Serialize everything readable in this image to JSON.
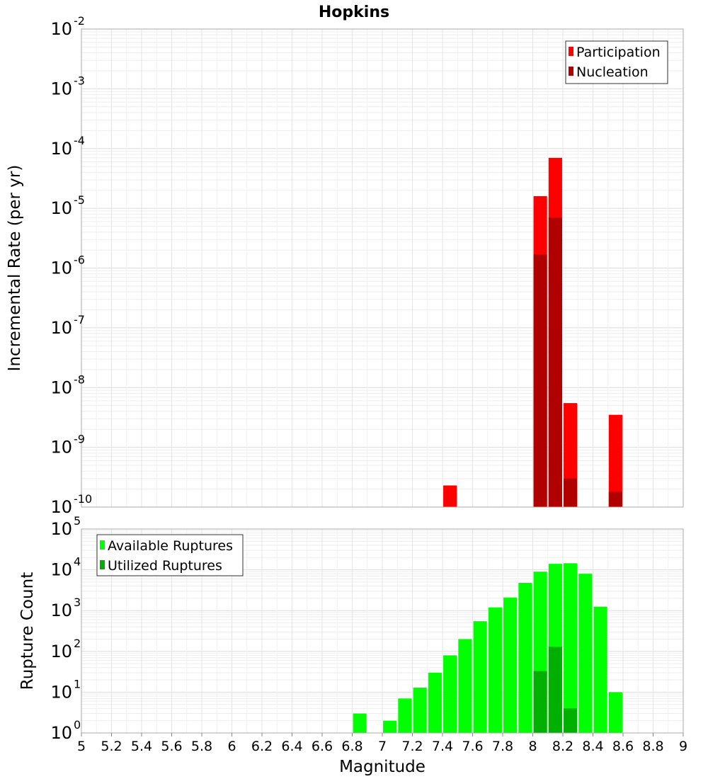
{
  "title": "Hopkins",
  "xlabel": "Magnitude",
  "x_ticks": [
    "5",
    "5.2",
    "5.4",
    "5.6",
    "5.8",
    "6",
    "6.2",
    "6.4",
    "6.6",
    "6.8",
    "7",
    "7.2",
    "7.4",
    "7.6",
    "7.8",
    "8",
    "8.2",
    "8.4",
    "8.6",
    "8.8",
    "9"
  ],
  "chart_data": [
    {
      "type": "bar",
      "title": "Hopkins",
      "xlabel": "Magnitude",
      "ylabel": "Incremental Rate (per yr)",
      "yscale": "log",
      "xlim": [
        5,
        9
      ],
      "ylim": [
        1e-10,
        0.01
      ],
      "y_tick_exponents": [
        "-10",
        "-9",
        "-8",
        "-7",
        "-6",
        "-5",
        "-4",
        "-3",
        "-2"
      ],
      "grid": true,
      "legend_position": "top-right",
      "series": [
        {
          "name": "Participation",
          "color": "#ff0000",
          "points": [
            {
              "x": 7.45,
              "y": 2.3e-10
            },
            {
              "x": 8.05,
              "y": 1.6e-05
            },
            {
              "x": 8.15,
              "y": 7e-05
            },
            {
              "x": 8.25,
              "y": 5.5e-09
            },
            {
              "x": 8.55,
              "y": 3.5e-09
            }
          ]
        },
        {
          "name": "Nucleation",
          "color": "#b00000",
          "points": [
            {
              "x": 8.05,
              "y": 1.7e-06
            },
            {
              "x": 8.15,
              "y": 7e-06
            },
            {
              "x": 8.25,
              "y": 3e-10
            },
            {
              "x": 8.55,
              "y": 1.8e-10
            }
          ]
        }
      ]
    },
    {
      "type": "bar",
      "title": "",
      "xlabel": "Magnitude",
      "ylabel": "Rupture Count",
      "yscale": "log",
      "xlim": [
        5,
        9
      ],
      "ylim": [
        1,
        100000.0
      ],
      "y_tick_exponents": [
        "0",
        "1",
        "2",
        "3",
        "4",
        "5"
      ],
      "grid": true,
      "legend_position": "top-left",
      "series": [
        {
          "name": "Available Ruptures",
          "color": "#00ff00",
          "points": [
            {
              "x": 6.85,
              "y": 3
            },
            {
              "x": 7.05,
              "y": 2
            },
            {
              "x": 7.15,
              "y": 7
            },
            {
              "x": 7.25,
              "y": 13
            },
            {
              "x": 7.35,
              "y": 30
            },
            {
              "x": 7.45,
              "y": 80
            },
            {
              "x": 7.55,
              "y": 200
            },
            {
              "x": 7.65,
              "y": 550
            },
            {
              "x": 7.75,
              "y": 1200
            },
            {
              "x": 7.85,
              "y": 2100
            },
            {
              "x": 7.95,
              "y": 4800
            },
            {
              "x": 8.05,
              "y": 9000
            },
            {
              "x": 8.15,
              "y": 14000
            },
            {
              "x": 8.25,
              "y": 14500
            },
            {
              "x": 8.35,
              "y": 8000
            },
            {
              "x": 8.45,
              "y": 1250
            },
            {
              "x": 8.55,
              "y": 10
            }
          ]
        },
        {
          "name": "Utilized Ruptures",
          "color": "#00b000",
          "points": [
            {
              "x": 7.45,
              "y": 1
            },
            {
              "x": 7.55,
              "y": 1
            },
            {
              "x": 7.65,
              "y": 1
            },
            {
              "x": 8.05,
              "y": 33
            },
            {
              "x": 8.15,
              "y": 130
            },
            {
              "x": 8.25,
              "y": 4
            },
            {
              "x": 8.55,
              "y": 1
            }
          ]
        }
      ]
    }
  ]
}
